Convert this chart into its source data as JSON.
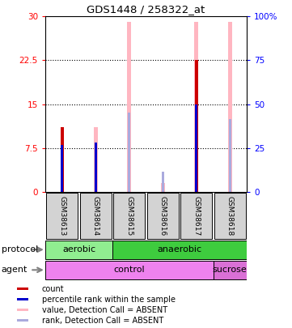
{
  "title": "GDS1448 / 258322_at",
  "samples": [
    "GSM38613",
    "GSM38614",
    "GSM38615",
    "GSM38616",
    "GSM38617",
    "GSM38618"
  ],
  "red_bars": [
    11.0,
    0,
    0,
    0,
    22.5,
    0
  ],
  "pink_bars": [
    0,
    11.0,
    29.0,
    1.5,
    29.0,
    29.0
  ],
  "blue_dots": [
    8.0,
    8.5,
    0,
    0,
    15.0,
    0
  ],
  "lightblue_dots": [
    0,
    0,
    13.5,
    3.5,
    0,
    12.5
  ],
  "protocol_groups": [
    {
      "label": "aerobic",
      "start": 0,
      "end": 2,
      "color": "#90EE90"
    },
    {
      "label": "anaerobic",
      "start": 2,
      "end": 6,
      "color": "#3ECC3E"
    }
  ],
  "agent_groups": [
    {
      "label": "control",
      "start": 0,
      "end": 5,
      "color": "#EE82EE"
    },
    {
      "label": "sucrose",
      "start": 5,
      "end": 6,
      "color": "#DA70D6"
    }
  ],
  "ylim_left": [
    0,
    30
  ],
  "ylim_right": [
    0,
    100
  ],
  "left_ticks": [
    0,
    7.5,
    15,
    22.5,
    30
  ],
  "right_ticks": [
    0,
    25,
    50,
    75,
    100
  ],
  "left_tick_labels": [
    "0",
    "7.5",
    "15",
    "22.5",
    "30"
  ],
  "right_tick_labels": [
    "0",
    "25",
    "50",
    "75",
    "100%"
  ],
  "bg_color": "#D3D3D3",
  "red_color": "#CC0000",
  "pink_color": "#FFB6C1",
  "blue_color": "#0000CC",
  "lightblue_color": "#AAAADD",
  "legend_items": [
    {
      "color": "#CC0000",
      "label": "count"
    },
    {
      "color": "#0000CC",
      "label": "percentile rank within the sample"
    },
    {
      "color": "#FFB6C1",
      "label": "value, Detection Call = ABSENT"
    },
    {
      "color": "#AAAADD",
      "label": "rank, Detection Call = ABSENT"
    }
  ]
}
